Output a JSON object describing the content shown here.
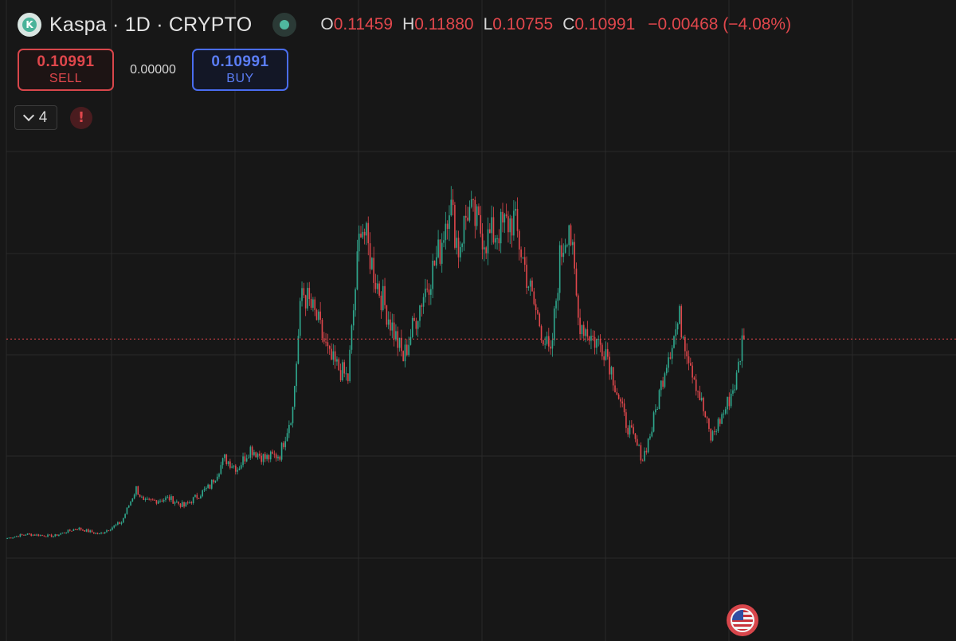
{
  "header": {
    "symbol_title": "Kaspa · 1D · CRYPTO",
    "logo_icon": "kaspa-logo-icon",
    "ohlc": {
      "open_label": "O",
      "open": "0.11459",
      "high_label": "H",
      "high": "0.11880",
      "low_label": "L",
      "low": "0.10755",
      "close_label": "C",
      "close": "0.10991",
      "change": "−0.00468 (−4.08%)"
    }
  },
  "trade": {
    "sell_price": "0.10991",
    "sell_label": "SELL",
    "spread": "0.00000",
    "buy_price": "0.10991",
    "buy_label": "BUY"
  },
  "indicators": {
    "count": "4",
    "warning_glyph": "!"
  },
  "events": {
    "marker_icon": "us-flag-icon"
  },
  "colors": {
    "up": "#2fa88e",
    "down": "#e0474c",
    "price_line": "#e0474c",
    "background": "#171717",
    "grid": "#2a2a2a"
  },
  "chart_data": {
    "type": "candlestick",
    "interval": "1D",
    "last_price": 0.10991,
    "ylim": [
      0.0,
      0.22
    ],
    "path_keypoints": [
      [
        0,
        0.01
      ],
      [
        10,
        0.012
      ],
      [
        25,
        0.011
      ],
      [
        38,
        0.015
      ],
      [
        50,
        0.012
      ],
      [
        62,
        0.018
      ],
      [
        70,
        0.035
      ],
      [
        74,
        0.028
      ],
      [
        88,
        0.03
      ],
      [
        96,
        0.026
      ],
      [
        110,
        0.036
      ],
      [
        118,
        0.05
      ],
      [
        125,
        0.045
      ],
      [
        132,
        0.055
      ],
      [
        140,
        0.05
      ],
      [
        148,
        0.052
      ],
      [
        155,
        0.075
      ],
      [
        160,
        0.135
      ],
      [
        168,
        0.12
      ],
      [
        175,
        0.1
      ],
      [
        185,
        0.09
      ],
      [
        192,
        0.17
      ],
      [
        200,
        0.14
      ],
      [
        215,
        0.1
      ],
      [
        225,
        0.13
      ],
      [
        235,
        0.155
      ],
      [
        240,
        0.18
      ],
      [
        245,
        0.155
      ],
      [
        250,
        0.175
      ],
      [
        260,
        0.16
      ],
      [
        275,
        0.17
      ],
      [
        285,
        0.13
      ],
      [
        295,
        0.1
      ],
      [
        300,
        0.15
      ],
      [
        305,
        0.17
      ],
      [
        310,
        0.12
      ],
      [
        318,
        0.11
      ],
      [
        325,
        0.105
      ],
      [
        335,
        0.07
      ],
      [
        345,
        0.05
      ],
      [
        350,
        0.065
      ],
      [
        358,
        0.1
      ],
      [
        365,
        0.12
      ],
      [
        372,
        0.095
      ],
      [
        382,
        0.06
      ],
      [
        390,
        0.075
      ],
      [
        396,
        0.09
      ],
      [
        400,
        0.115
      ]
    ]
  }
}
